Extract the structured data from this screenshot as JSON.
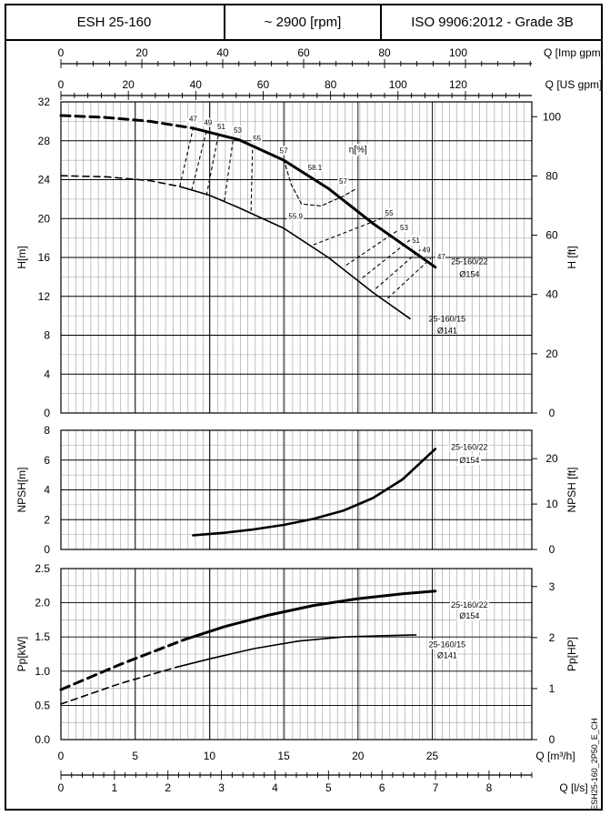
{
  "header": {
    "model": "ESH 25-160",
    "speed": "~ 2900 [rpm]",
    "standard": "ISO 9906:2012 - Grade 3B"
  },
  "footer": {
    "code": "ESH25-160_2P50_E_CH"
  },
  "chart_data": {
    "type": "line",
    "flow_axes": {
      "imp_gpm": {
        "label": "Q [Imp gpm]",
        "ticks": [
          0,
          20,
          40,
          60,
          80,
          100
        ],
        "range": [
          0,
          116.4
        ]
      },
      "us_gpm": {
        "label": "Q [US gpm]",
        "ticks": [
          0,
          20,
          40,
          60,
          80,
          100,
          120
        ],
        "range": [
          0,
          139.7
        ]
      },
      "m3h": {
        "label": "Q [m³/h]",
        "ticks": [
          0,
          5,
          10,
          15,
          20,
          25
        ],
        "range": [
          0,
          31.7
        ]
      },
      "ls": {
        "label": "Q [l/s]",
        "ticks": [
          0,
          1,
          2,
          3,
          4,
          5,
          6,
          7,
          8
        ],
        "range": [
          0,
          8.8
        ]
      }
    },
    "head": {
      "ylabel": "H[m]",
      "ylabel_right": "H [ft]",
      "ylim": [
        0,
        32
      ],
      "yticks": [
        0,
        4,
        8,
        12,
        16,
        20,
        24,
        28,
        32
      ],
      "ylim_right": [
        0,
        104.99
      ],
      "yticks_right": [
        0,
        20,
        40,
        60,
        80,
        100
      ],
      "series": [
        {
          "name": "25-160/22",
          "diameter": "Ø154",
          "x_dashed": [
            0,
            3,
            6,
            8.9
          ],
          "y_dashed": [
            30.6,
            30.4,
            30.0,
            29.3
          ],
          "x": [
            8.9,
            12,
            15,
            18,
            21,
            24,
            25.2
          ],
          "y": [
            29.3,
            28.1,
            26.0,
            23.1,
            19.5,
            16.3,
            15.0
          ]
        },
        {
          "name": "25-160/15",
          "diameter": "Ø141",
          "x_dashed": [
            0,
            3,
            6,
            8
          ],
          "y_dashed": [
            24.4,
            24.3,
            23.9,
            23.3
          ],
          "x": [
            8,
            10,
            12,
            15,
            18,
            21,
            23.5
          ],
          "y": [
            23.3,
            22.4,
            21.1,
            19.0,
            16.0,
            12.4,
            9.7
          ]
        }
      ],
      "efficiency": {
        "label": "η[%]",
        "labels": [
          {
            "text": "47",
            "x": 8.9,
            "y": 30.0
          },
          {
            "text": "49",
            "x": 9.9,
            "y": 29.6
          },
          {
            "text": "51",
            "x": 10.8,
            "y": 29.2
          },
          {
            "text": "53",
            "x": 11.9,
            "y": 28.8
          },
          {
            "text": "55",
            "x": 13.2,
            "y": 28.0
          },
          {
            "text": "57",
            "x": 15.0,
            "y": 26.7
          },
          {
            "text": "58.1",
            "x": 17.1,
            "y": 25.0
          },
          {
            "text": "57",
            "x": 19.0,
            "y": 23.6
          },
          {
            "text": "55",
            "x": 22.1,
            "y": 20.3
          },
          {
            "text": "53",
            "x": 23.1,
            "y": 18.8
          },
          {
            "text": "51",
            "x": 23.9,
            "y": 17.5
          },
          {
            "text": "49",
            "x": 24.6,
            "y": 16.5
          },
          {
            "text": "47",
            "x": 25.6,
            "y": 15.8
          },
          {
            "text": "55.9",
            "x": 15.8,
            "y": 20.0
          }
        ],
        "iso_lines": [
          {
            "x1": 8.0,
            "y1": 23.3,
            "x2": 8.9,
            "y2": 29.3
          },
          {
            "x1": 8.8,
            "y1": 22.9,
            "x2": 9.8,
            "y2": 29.0
          },
          {
            "x1": 9.8,
            "y1": 22.4,
            "x2": 10.6,
            "y2": 28.6
          },
          {
            "x1": 11.0,
            "y1": 21.8,
            "x2": 11.6,
            "y2": 28.2
          },
          {
            "x1": 12.8,
            "y1": 20.8,
            "x2": 12.9,
            "y2": 27.4
          },
          {
            "x1": 17.0,
            "y1": 17.3,
            "x2": 21.9,
            "y2": 20.2
          },
          {
            "x1": 19.2,
            "y1": 15.2,
            "x2": 22.7,
            "y2": 18.8
          },
          {
            "x1": 20.3,
            "y1": 13.9,
            "x2": 23.5,
            "y2": 17.8
          },
          {
            "x1": 21.2,
            "y1": 12.8,
            "x2": 24.2,
            "y2": 16.8
          },
          {
            "x1": 22.0,
            "y1": 11.8,
            "x2": 24.9,
            "y2": 15.9
          }
        ],
        "loop_57": {
          "x": [
            15.0,
            15.5,
            16.2,
            17.5,
            19.0,
            19.8
          ],
          "y": [
            26.1,
            23.5,
            21.5,
            21.3,
            22.3,
            23.0
          ]
        }
      }
    },
    "npsh": {
      "ylabel": "NPSH[m]",
      "ylabel_right": "NPSH [ft]",
      "ylim": [
        0,
        8
      ],
      "yticks": [
        0,
        2,
        4,
        6,
        8
      ],
      "ylim_right": [
        0,
        26.25
      ],
      "yticks_right": [
        0,
        10,
        20
      ],
      "series": [
        {
          "name": "25-160/22",
          "diameter": "Ø154",
          "x": [
            8.9,
            11,
            13,
            15,
            17,
            19,
            21,
            23,
            25.2
          ],
          "y": [
            0.95,
            1.12,
            1.35,
            1.65,
            2.05,
            2.6,
            3.45,
            4.7,
            6.75
          ]
        }
      ]
    },
    "power": {
      "ylabel": "Pp[kW]",
      "ylabel_right": "Pp[HP]",
      "ylim": [
        0,
        2.5
      ],
      "yticks": [
        0,
        0.5,
        1.0,
        1.5,
        2.0,
        2.5
      ],
      "ylim_right": [
        0,
        3.353
      ],
      "yticks_right": [
        0,
        1,
        2,
        3
      ],
      "series": [
        {
          "name": "25-160/22",
          "diameter": "Ø154",
          "x_dashed": [
            0,
            4,
            8.3
          ],
          "y_dashed": [
            0.73,
            1.1,
            1.46
          ],
          "x": [
            8.3,
            11,
            14,
            17,
            20,
            23,
            25.2
          ],
          "y": [
            1.46,
            1.65,
            1.82,
            1.96,
            2.06,
            2.13,
            2.17
          ]
        },
        {
          "name": "25-160/15",
          "diameter": "Ø141",
          "x_dashed": [
            0,
            4,
            7.8
          ],
          "y_dashed": [
            0.52,
            0.82,
            1.06
          ],
          "x": [
            7.8,
            10,
            13,
            16,
            19,
            22,
            23.9
          ],
          "y": [
            1.06,
            1.18,
            1.33,
            1.44,
            1.5,
            1.52,
            1.53
          ]
        }
      ]
    }
  }
}
